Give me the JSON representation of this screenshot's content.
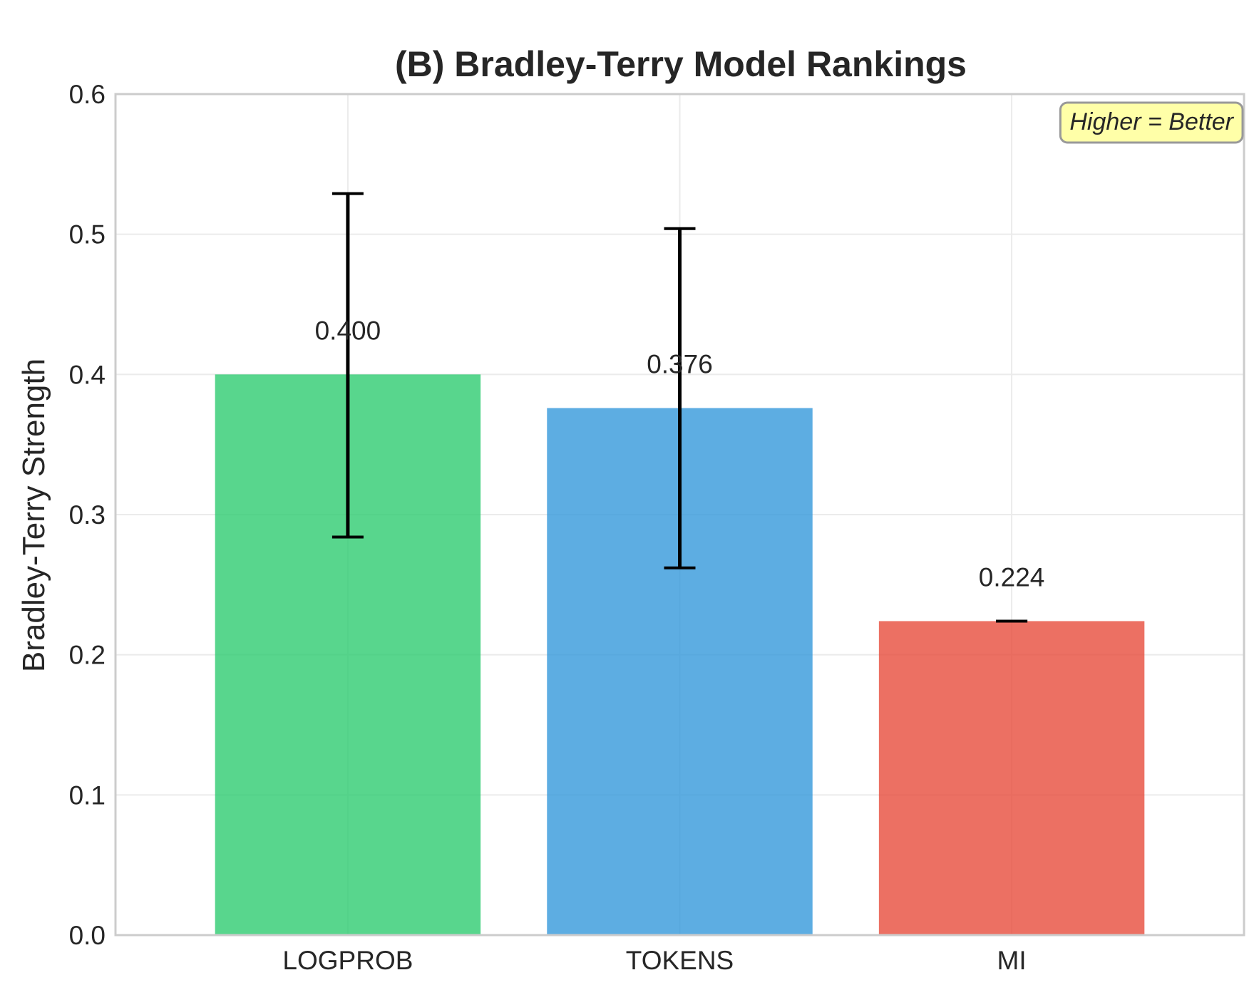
{
  "chart_data": {
    "type": "bar",
    "title": "(B) Bradley-Terry Model Rankings",
    "xlabel": "",
    "ylabel": "Bradley-Terry Strength",
    "categories": [
      "LOGPROB",
      "TOKENS",
      "MI"
    ],
    "values": [
      0.4,
      0.376,
      0.224
    ],
    "value_labels": [
      "0.400",
      "0.376",
      "0.224"
    ],
    "error_bars": [
      {
        "low": 0.284,
        "high": 0.529
      },
      {
        "low": 0.262,
        "high": 0.504
      },
      {
        "low": 0.224,
        "high": 0.224
      }
    ],
    "colors": [
      "#2ecc71",
      "#3498db",
      "#e74c3c"
    ],
    "bar_opacity": 0.8,
    "ylim": [
      0,
      0.6
    ],
    "yticks": [
      0.0,
      0.1,
      0.2,
      0.3,
      0.4,
      0.5,
      0.6
    ],
    "ytick_labels": [
      "0.0",
      "0.1",
      "0.2",
      "0.3",
      "0.4",
      "0.5",
      "0.6"
    ],
    "grid": true,
    "annotation": {
      "text": "Higher = Better",
      "placement": "top-right",
      "background": "#ffff99"
    }
  }
}
